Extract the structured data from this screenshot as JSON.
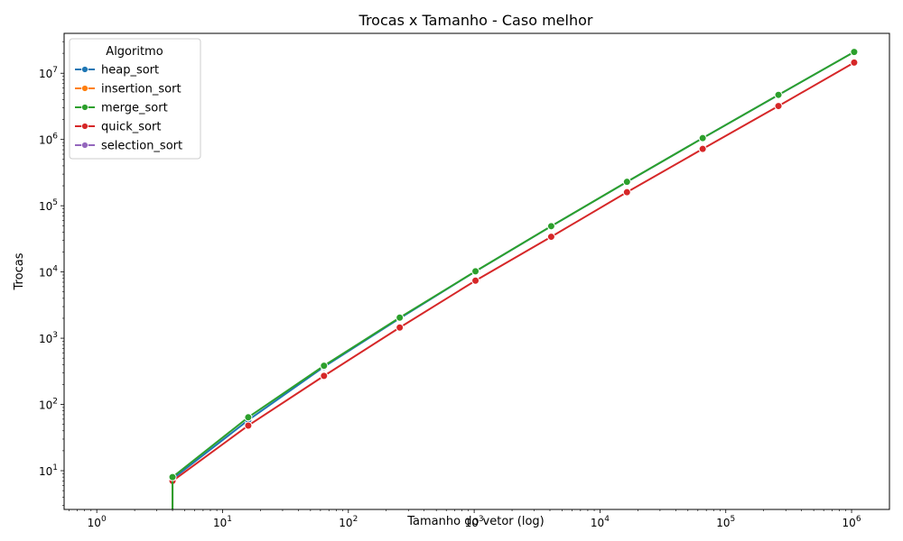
{
  "chart_data": {
    "type": "line",
    "title": "Trocas x Tamanho - Caso melhor",
    "xlabel": "Tamanho do vetor (log)",
    "ylabel": "Trocas",
    "xscale": "log",
    "yscale": "log",
    "xlim": [
      0.55,
      2000000
    ],
    "ylim": [
      2.6,
      40000000
    ],
    "x_ticks": [
      {
        "value": 1,
        "base": "10",
        "exp": "0"
      },
      {
        "value": 10,
        "base": "10",
        "exp": "1"
      },
      {
        "value": 100,
        "base": "10",
        "exp": "2"
      },
      {
        "value": 1000,
        "base": "10",
        "exp": "3"
      },
      {
        "value": 10000,
        "base": "10",
        "exp": "4"
      },
      {
        "value": 100000,
        "base": "10",
        "exp": "5"
      },
      {
        "value": 1000000,
        "base": "10",
        "exp": "6"
      }
    ],
    "y_ticks": [
      {
        "value": 10,
        "base": "10",
        "exp": "1"
      },
      {
        "value": 100,
        "base": "10",
        "exp": "2"
      },
      {
        "value": 1000,
        "base": "10",
        "exp": "3"
      },
      {
        "value": 10000,
        "base": "10",
        "exp": "4"
      },
      {
        "value": 100000,
        "base": "10",
        "exp": "5"
      },
      {
        "value": 1000000,
        "base": "10",
        "exp": "6"
      },
      {
        "value": 10000000,
        "base": "10",
        "exp": "7"
      }
    ],
    "x": [
      1,
      4,
      16,
      64,
      256,
      1024,
      4096,
      16384,
      65536,
      262144,
      1048576
    ],
    "legend": {
      "title": "Algoritmo",
      "placement": "top-left"
    },
    "grid": false,
    "series": [
      {
        "name": "heap_sort",
        "color": "#1f77b4",
        "values": [
          0,
          7.5,
          58,
          370,
          2000,
          10200,
          49000,
          229000,
          1050000,
          4700000,
          21000000
        ]
      },
      {
        "name": "insertion_sort",
        "color": "#ff7f0e",
        "values": [
          0,
          0,
          0,
          0,
          0,
          0,
          0,
          0,
          0,
          0,
          0
        ]
      },
      {
        "name": "merge_sort",
        "color": "#2ca02c",
        "values": [
          0,
          8,
          64,
          384,
          2048,
          10240,
          49152,
          229376,
          1048576,
          4718592,
          20971520
        ]
      },
      {
        "name": "quick_sort",
        "color": "#d62728",
        "values": [
          0,
          7,
          48,
          270,
          1450,
          7400,
          34000,
          160000,
          720000,
          3200000,
          14500000
        ]
      },
      {
        "name": "selection_sort",
        "color": "#9467bd",
        "values": [
          0,
          0,
          0,
          0,
          0,
          0,
          0,
          0,
          0,
          0,
          0
        ]
      }
    ]
  }
}
